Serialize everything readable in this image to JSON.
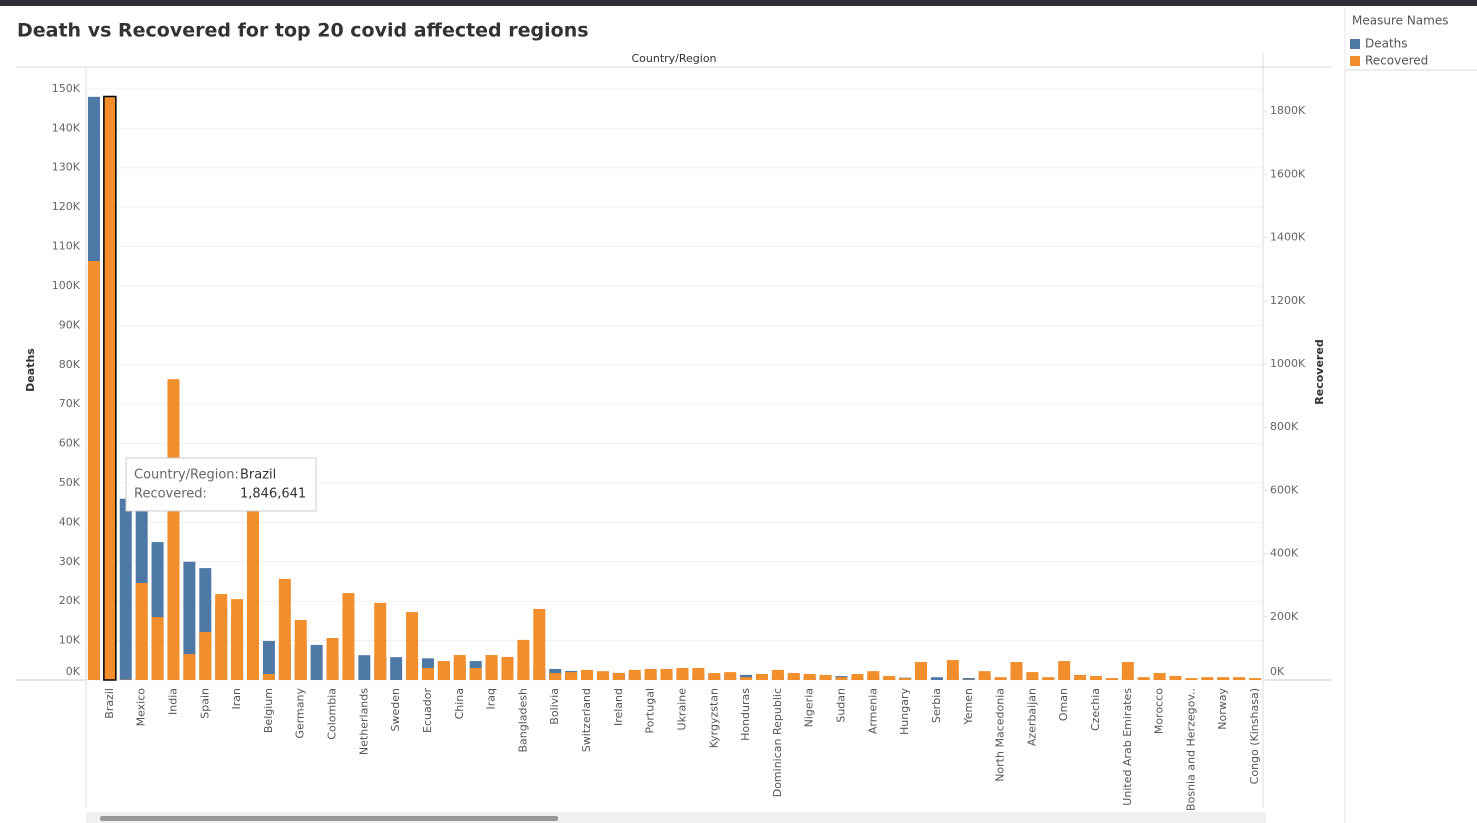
{
  "chart_data": {
    "type": "bar",
    "title": "Death vs Recovered for top 20 covid affected regions",
    "header": "Country/Region",
    "y_label": "Deaths",
    "y2_label": "Recovered",
    "legend": {
      "title": "Measure Names",
      "position": "right"
    },
    "grid": true,
    "categories": [
      null,
      "Brazil",
      null,
      "Mexico",
      null,
      "India",
      null,
      "Spain",
      null,
      "Iran",
      null,
      "Belgium",
      null,
      "Germany",
      null,
      "Colombia",
      null,
      "Netherlands",
      null,
      "Sweden",
      null,
      "Ecuador",
      null,
      "China",
      null,
      "Iraq",
      null,
      "Bangladesh",
      null,
      "Bolivia",
      null,
      "Switzerland",
      null,
      "Ireland",
      null,
      "Portugal",
      null,
      "Ukraine",
      null,
      "Kyrgyzstan",
      null,
      "Honduras",
      null,
      "Dominican Republic",
      null,
      "Nigeria",
      null,
      "Sudan",
      null,
      "Armenia",
      null,
      "Hungary",
      null,
      "Serbia",
      null,
      "Yemen",
      null,
      "North Macedonia",
      null,
      "Azerbaijan",
      null,
      "Oman",
      null,
      "Czechia",
      null,
      "United Arab Emirates",
      null,
      "Morocco",
      null,
      "Bosnia and Herzegov..",
      null,
      "Norway",
      null,
      "Congo (Kinshasa)"
    ],
    "series": [
      {
        "name": "Deaths",
        "color": "#4e79a7",
        "values": [
          148000,
          95000,
          46000,
          46000,
          35000,
          45000,
          30000,
          28400,
          19000,
          16000,
          13000,
          9900,
          9000,
          9000,
          8900,
          8000,
          7000,
          6300,
          6000,
          5800,
          5600,
          5500,
          4700,
          4600,
          4800,
          4400,
          3000,
          3000,
          3000,
          2800,
          2300,
          2000,
          1800,
          1800,
          1700,
          1700,
          1600,
          1500,
          1400,
          1200,
          1300,
          1300,
          1200,
          1100,
          1000,
          900,
          900,
          1000,
          800,
          800,
          700,
          600,
          600,
          700,
          600,
          500,
          600,
          500,
          500,
          400,
          400,
          400,
          400,
          400,
          400,
          300,
          300,
          300,
          300,
          300,
          300,
          300,
          300,
          300
        ]
      },
      {
        "name": "Recovered",
        "color": "#f28e2b",
        "axis": "y2",
        "values": [
          1326000,
          1846641,
          1000,
          307000,
          199000,
          952000,
          82000,
          152000,
          272000,
          256000,
          579000,
          19000,
          320000,
          190000,
          0,
          133000,
          275000,
          0,
          244000,
          0,
          215000,
          38000,
          60000,
          79000,
          38000,
          79000,
          73000,
          127000,
          225000,
          22000,
          25000,
          32000,
          28000,
          22000,
          32000,
          35000,
          35000,
          38000,
          38000,
          22000,
          25000,
          9000,
          19000,
          32000,
          22000,
          19000,
          16000,
          9000,
          19000,
          28000,
          13000,
          6000,
          57000,
          0,
          63000,
          1000,
          28000,
          9000,
          57000,
          25000,
          9000,
          60000,
          16000,
          13000,
          6000,
          57000,
          9000,
          22000,
          13000,
          6000,
          9000,
          9000,
          9000,
          6000
        ]
      }
    ],
    "ylim": [
      0,
      151000
    ],
    "yticks": [
      {
        "value": 0,
        "label": "0K"
      },
      {
        "value": 10000,
        "label": "10K"
      },
      {
        "value": 20000,
        "label": "20K"
      },
      {
        "value": 30000,
        "label": "30K"
      },
      {
        "value": 40000,
        "label": "40K"
      },
      {
        "value": 50000,
        "label": "50K"
      },
      {
        "value": 60000,
        "label": "60K"
      },
      {
        "value": 70000,
        "label": "70K"
      },
      {
        "value": 80000,
        "label": "80K"
      },
      {
        "value": 90000,
        "label": "90K"
      },
      {
        "value": 100000,
        "label": "100K"
      },
      {
        "value": 110000,
        "label": "110K"
      },
      {
        "value": 120000,
        "label": "120K"
      },
      {
        "value": 130000,
        "label": "130K"
      },
      {
        "value": 140000,
        "label": "140K"
      },
      {
        "value": 150000,
        "label": "150K"
      }
    ],
    "y2lim": [
      0,
      1883000
    ],
    "y2ticks": [
      {
        "value": 0,
        "label": "0K"
      },
      {
        "value": 200000,
        "label": "200K"
      },
      {
        "value": 400000,
        "label": "400K"
      },
      {
        "value": 600000,
        "label": "600K"
      },
      {
        "value": 800000,
        "label": "800K"
      },
      {
        "value": 1000000,
        "label": "1000K"
      },
      {
        "value": 1200000,
        "label": "1200K"
      },
      {
        "value": 1400000,
        "label": "1400K"
      },
      {
        "value": 1600000,
        "label": "1600K"
      },
      {
        "value": 1800000,
        "label": "1800K"
      }
    ],
    "highlight": 1,
    "tooltip": {
      "key1": "Country/Region:",
      "val1": "Brazil",
      "key2": "Recovered:",
      "val2": "1,846,641"
    }
  }
}
